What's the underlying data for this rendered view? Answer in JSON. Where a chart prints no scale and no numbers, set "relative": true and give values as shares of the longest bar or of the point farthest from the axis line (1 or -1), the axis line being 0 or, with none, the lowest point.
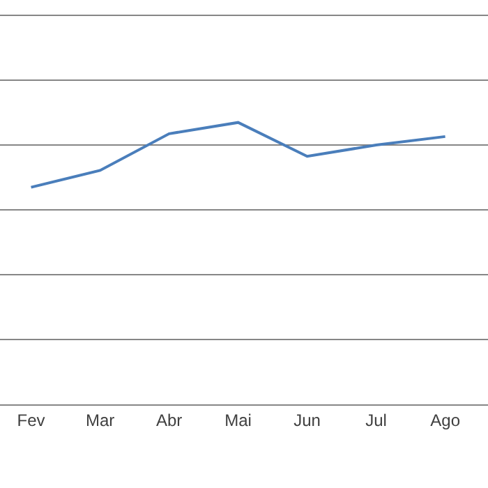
{
  "chart_data": {
    "type": "line",
    "relative": true,
    "grid": "y",
    "legend": false,
    "marker": "none",
    "line_style": "solid",
    "categories": [
      "Fev",
      "Mar",
      "Abr",
      "Mai",
      "Jun",
      "Jul",
      "Ago"
    ],
    "series": [
      {
        "color": "#4a7ebb",
        "values": [
          0.77,
          0.83,
          0.96,
          1,
          0.88,
          0.92,
          0.95
        ]
      }
    ]
  }
}
